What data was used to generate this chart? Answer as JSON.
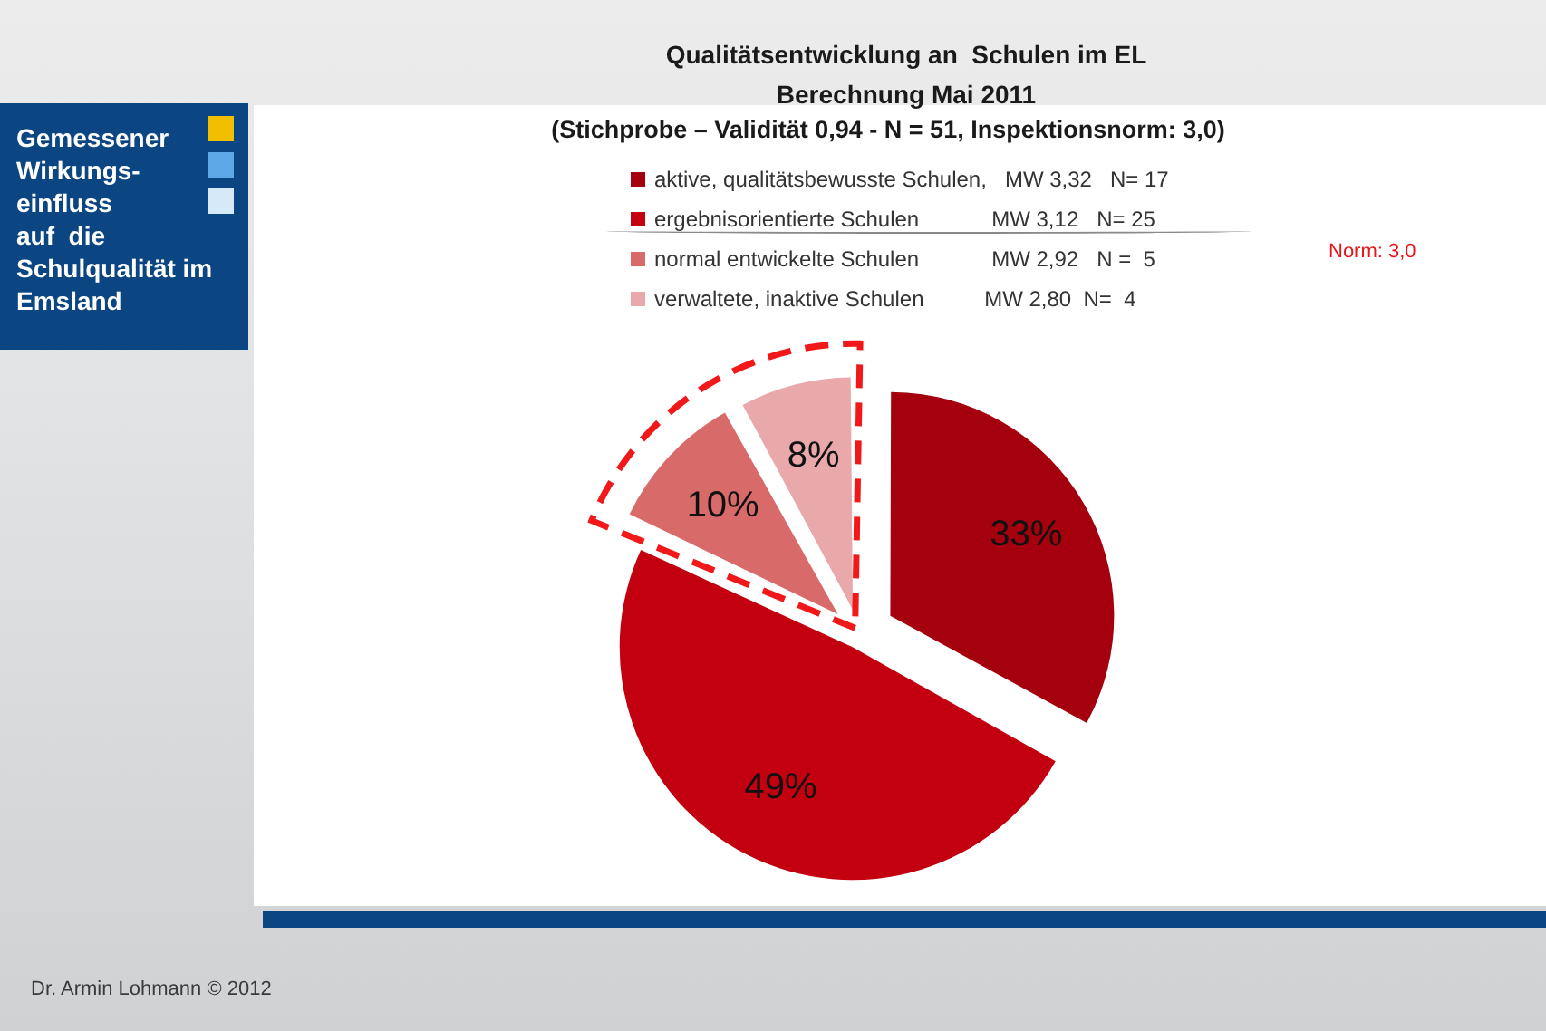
{
  "chart_data": {
    "type": "pie",
    "title": "Qualitätsentwicklung an  Schulen im EL\nBerechnung Mai 2011",
    "subtitle": "(Stichprobe – Validität 0,94 - N = 51, Inspektionsnorm: 3,0)",
    "categories": [
      "aktive, qualitätsbewusste Schulen,   MW 3,32   N= 17",
      "ergebnisorientierte Schulen            MW 3,12   N= 25",
      "normal entwickelte Schulen            MW 2,92   N =  5",
      "verwaltete, inaktive Schulen          MW 2,80  N=  4"
    ],
    "values": [
      33,
      49,
      10,
      8
    ],
    "colors": [
      "#a5000e",
      "#c3000f",
      "#d86a6a",
      "#e9a8aa"
    ],
    "value_labels": [
      "33%",
      "49%",
      "10%",
      "8%"
    ],
    "legend": "top",
    "annotations": [
      "Gemessener\nWirkungs-\neinfluss\nauf  die\nSchulqualität im\nEmsland",
      "Norm: 3,0",
      "Dr. Armin Lohmann © 2012"
    ]
  }
}
